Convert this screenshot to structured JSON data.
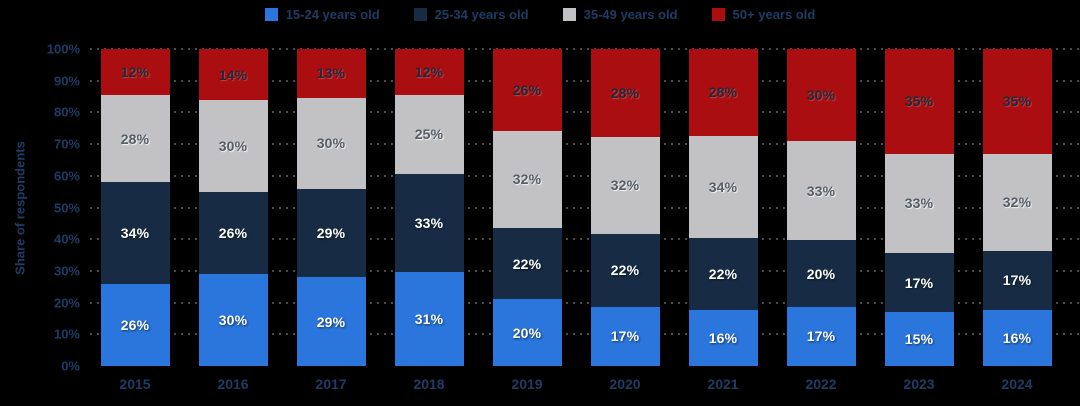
{
  "background": "#000000",
  "grid_color": "#4c4c4c",
  "axis_text_color": "#1e3c64",
  "ylabel": "Share of respondents",
  "chart_data": {
    "type": "bar",
    "stacked": true,
    "title": "",
    "xlabel": "",
    "ylabel": "Share of respondents",
    "ylim": [
      0,
      100
    ],
    "grid": "dotted horizontal",
    "legend_position": "top",
    "y_ticks": [
      "0%",
      "10%",
      "20%",
      "30%",
      "40%",
      "50%",
      "60%",
      "70%",
      "80%",
      "90%",
      "100%"
    ],
    "categories": [
      "2015",
      "2016",
      "2017",
      "2018",
      "2019",
      "2020",
      "2021",
      "2022",
      "2023",
      "2024"
    ],
    "series": [
      {
        "name": "15-24 years old",
        "color": "#2a76dd",
        "label_color": "#ffffff",
        "label_shadow": "1px 1px 2px rgba(0,0,0,0.55)",
        "values": [
          26,
          30,
          29,
          31,
          20,
          17,
          16,
          17,
          15,
          16
        ]
      },
      {
        "name": "25-34 years old",
        "color": "#172c44",
        "label_color": "#ffffff",
        "label_shadow": "1px 1px 2px rgba(0,0,0,0.55)",
        "values": [
          34,
          26,
          29,
          33,
          22,
          22,
          22,
          20,
          17,
          17
        ]
      },
      {
        "name": "35-49 years old",
        "color": "#c2c1c3",
        "label_color": "#565d66",
        "label_shadow": "1px 1px 1px rgba(255,255,255,0.85)",
        "values": [
          28,
          30,
          30,
          25,
          32,
          32,
          34,
          33,
          33,
          32
        ]
      },
      {
        "name": "50+ years old",
        "color": "#ab0e11",
        "label_color": "#1c2a3a",
        "label_shadow": "1px 1px 1px rgba(255,255,255,0.22)",
        "values": [
          12,
          14,
          13,
          12,
          26,
          28,
          28,
          30,
          35,
          35
        ]
      }
    ]
  }
}
